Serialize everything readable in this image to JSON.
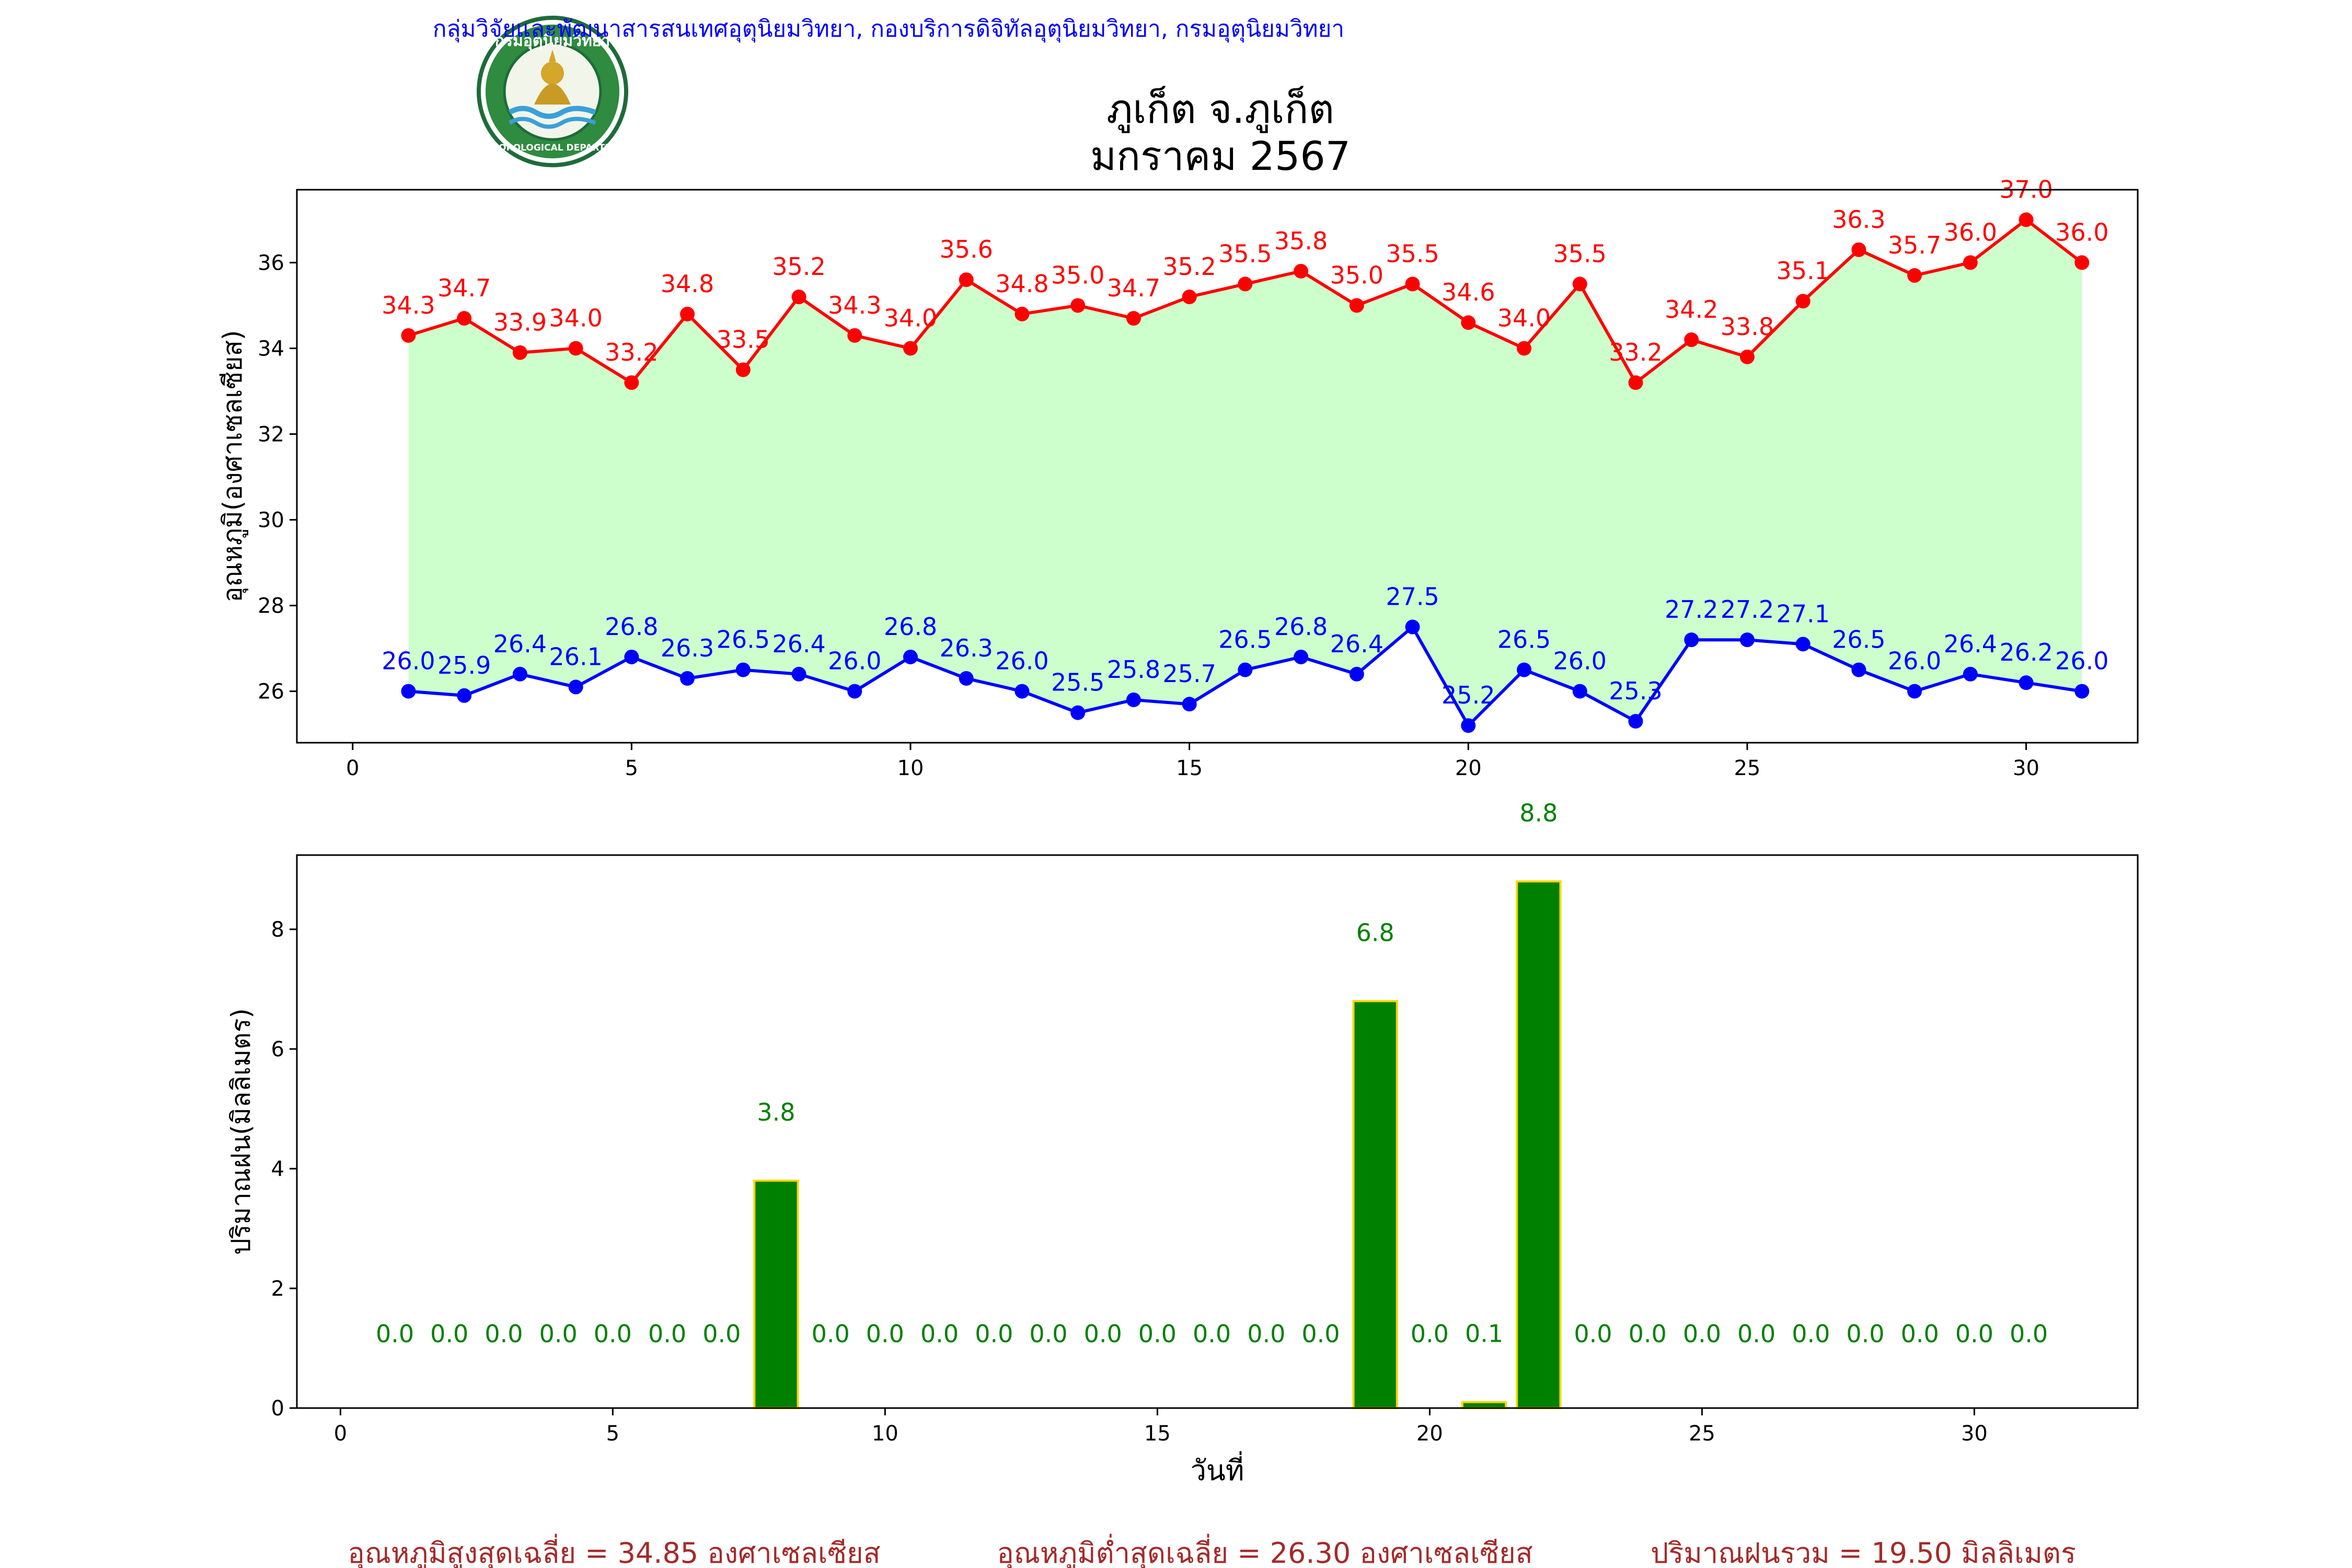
{
  "header": {
    "org_line": "กลุ่มวิจัยและพัฒนาสารสนเทศอุตุนิยมวิทยา, กองบริการดิจิทัลอุตุนิยมวิทยา, กรมอุตุนิยมวิทยา",
    "title_line1": "ภูเก็ต จ.ภูเก็ต",
    "title_line2": "มกราคม 2567",
    "logo_top_text": "กรมอุตุนิยมวิทยา",
    "logo_bottom_text": "METEOROLOGICAL DEPARTMENT"
  },
  "colors": {
    "max_temp": "#ff0000",
    "min_temp": "#0000ff",
    "fill": "#ccffcc",
    "rain_bar": "#008000",
    "rain_bar_edge": "#ffd700",
    "rain_label": "#008000",
    "header_text": "#0000ff",
    "summary_text": "#a52a2a"
  },
  "chart_data": [
    {
      "type": "line",
      "ylabel": "อุณหภูมิ(องศาเซลเซียส)",
      "xlabel": "",
      "xlim": [
        -1,
        32
      ],
      "ylim": [
        24.8,
        37.7
      ],
      "xticks": [
        0,
        5,
        10,
        15,
        20,
        25,
        30
      ],
      "yticks": [
        26,
        28,
        30,
        32,
        34,
        36
      ],
      "x": [
        1,
        2,
        3,
        4,
        5,
        6,
        7,
        8,
        9,
        10,
        11,
        12,
        13,
        14,
        15,
        16,
        17,
        18,
        19,
        20,
        21,
        22,
        23,
        24,
        25,
        26,
        27,
        28,
        29,
        30,
        31
      ],
      "series": [
        {
          "values": [
            34.3,
            34.7,
            33.9,
            34.0,
            33.2,
            34.8,
            33.5,
            35.2,
            34.3,
            34.0,
            35.6,
            34.8,
            35.0,
            34.7,
            35.2,
            35.5,
            35.8,
            35.0,
            35.5,
            34.6,
            34.0,
            35.5,
            33.2,
            34.2,
            33.8,
            35.1,
            36.3,
            35.7,
            36.0,
            37.0,
            36.0
          ],
          "labels": [
            "34.3",
            "34.7",
            "33.9",
            "34.0",
            "33.2",
            "34.8",
            "33.5",
            "35.2",
            "34.3",
            "34.0",
            "35.6",
            "34.8",
            "35.0",
            "34.7",
            "35.2",
            "35.5",
            "35.8",
            "35.0",
            "35.5",
            "34.6",
            "34.0",
            "35.5",
            "33.2",
            "34.2",
            "33.8",
            "35.1",
            "36.3",
            "35.7",
            "36.0",
            "37.0",
            "36.0"
          ]
        },
        {
          "values": [
            26.0,
            25.9,
            26.4,
            26.1,
            26.8,
            26.3,
            26.5,
            26.4,
            26.0,
            26.8,
            26.3,
            26.0,
            25.5,
            25.8,
            25.7,
            26.5,
            26.8,
            26.4,
            27.5,
            25.2,
            26.5,
            26.0,
            25.3,
            27.2,
            27.2,
            27.1,
            26.5,
            26.0,
            26.4,
            26.2,
            26.0
          ],
          "labels": [
            "26.0",
            "25.9",
            "26.4",
            "26.1",
            "26.8",
            "26.3",
            "26.5",
            "26.4",
            "26.0",
            "26.8",
            "26.3",
            "26.0",
            "25.5",
            "25.8",
            "25.7",
            "26.5",
            "26.8",
            "26.4",
            "27.5",
            "25.2",
            "26.5",
            "26.0",
            "25.3",
            "27.2",
            "27.2",
            "27.1",
            "26.5",
            "26.0",
            "26.4",
            "26.2",
            "26.0"
          ]
        }
      ]
    },
    {
      "type": "bar",
      "ylabel": "ปริมาณฝน(มิลลิเมตร)",
      "xlabel": "วันที่",
      "xlim": [
        -0.8,
        33
      ],
      "ylim": [
        0,
        9.24
      ],
      "xticks": [
        0,
        5,
        10,
        15,
        20,
        25,
        30
      ],
      "yticks": [
        0,
        2,
        4,
        6,
        8
      ],
      "x": [
        1,
        2,
        3,
        4,
        5,
        6,
        7,
        8,
        9,
        10,
        11,
        12,
        13,
        14,
        15,
        16,
        17,
        18,
        19,
        20,
        21,
        22,
        23,
        24,
        25,
        26,
        27,
        28,
        29,
        30,
        31
      ],
      "values": [
        0.0,
        0.0,
        0.0,
        0.0,
        0.0,
        0.0,
        0.0,
        3.8,
        0.0,
        0.0,
        0.0,
        0.0,
        0.0,
        0.0,
        0.0,
        0.0,
        0.0,
        0.0,
        6.8,
        0.0,
        0.1,
        8.8,
        0.0,
        0.0,
        0.0,
        0.0,
        0.0,
        0.0,
        0.0,
        0.0,
        0.0
      ],
      "labels": [
        "0.0",
        "0.0",
        "0.0",
        "0.0",
        "0.0",
        "0.0",
        "0.0",
        "3.8",
        "0.0",
        "0.0",
        "0.0",
        "0.0",
        "0.0",
        "0.0",
        "0.0",
        "0.0",
        "0.0",
        "0.0",
        "6.8",
        "0.0",
        "0.1",
        "8.8",
        "0.0",
        "0.0",
        "0.0",
        "0.0",
        "0.0",
        "0.0",
        "0.0",
        "0.0",
        "0.0"
      ]
    }
  ],
  "summary": {
    "avg_max": "อุณหภูมิสูงสุดเฉลี่ย = 34.85 องศาเซลเซียส",
    "avg_min": "อุณหภูมิต่ำสุดเฉลี่ย = 26.30 องศาเซลเซียส",
    "total_rain": "ปริมาณฝนรวม = 19.50 มิลลิเมตร"
  }
}
